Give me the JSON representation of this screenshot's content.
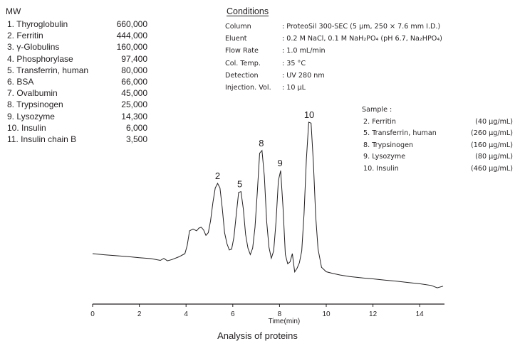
{
  "mw_panel": {
    "title": "MW",
    "rows": [
      {
        "name": "1. Thyroglobulin",
        "value": "660,000"
      },
      {
        "name": "2. Ferritin",
        "value": "444,000"
      },
      {
        "name": "3. γ-Globulins",
        "value": "160,000"
      },
      {
        "name": "4. Phosphorylase",
        "value": "97,400"
      },
      {
        "name": "5. Transferrin, human",
        "value": "80,000"
      },
      {
        "name": "6. BSA",
        "value": "66,000"
      },
      {
        "name": "7. Ovalbumin",
        "value": "45,000"
      },
      {
        "name": "8. Trypsinogen",
        "value": "25,000"
      },
      {
        "name": "9. Lysozyme",
        "value": "14,300"
      },
      {
        "name": "10. Insulin",
        "value": "6,000"
      },
      {
        "name": "11. Insulin chain B",
        "value": "3,500"
      }
    ]
  },
  "conditions": {
    "title": "Conditions",
    "rows": [
      {
        "key": "Column",
        "value": ": ProteoSil 300-SEC (5 µm, 250 × 7.6 mm I.D.)"
      },
      {
        "key": "Eluent",
        "value": ": 0.2 M NaCl, 0.1 M NaH₂PO₄ (pH 6.7, Na₂HPO₄)"
      },
      {
        "key": "Flow Rate",
        "value": ": 1.0 mL/min"
      },
      {
        "key": "Col. Temp.",
        "value": ": 35 °C"
      },
      {
        "key": "Detection",
        "value": ": UV 280 nm"
      },
      {
        "key": "Injection. Vol.",
        "value": ": 10 µL"
      }
    ]
  },
  "sample": {
    "title": "Sample :",
    "rows": [
      {
        "name": "2. Ferritin",
        "conc": "(40 µg/mL)"
      },
      {
        "name": "5. Transferrin, human",
        "conc": "(260 µg/mL)"
      },
      {
        "name": "8. Trypsinogen",
        "conc": "(160 µg/mL)"
      },
      {
        "name": "9. Lysozyme",
        "conc": "(80 µg/mL)"
      },
      {
        "name": "10. Insulin",
        "conc": "(460 µg/mL)"
      }
    ]
  },
  "caption": "Analysis of proteins",
  "chart_data": {
    "type": "line",
    "xlabel": "Time(min)",
    "ylabel": "",
    "xlim": [
      0,
      15
    ],
    "ylim": [
      0,
      100
    ],
    "x_ticks": [
      0,
      2,
      4,
      6,
      8,
      10,
      12,
      14
    ],
    "grid": false,
    "series": [
      {
        "x": [
          0,
          0.5,
          1.0,
          1.5,
          2.0,
          2.5,
          2.9,
          3.05,
          3.2,
          3.4,
          3.7,
          3.95,
          4.05,
          4.15,
          4.3,
          4.45,
          4.55,
          4.65,
          4.75,
          4.85,
          4.95,
          5.05,
          5.15,
          5.25,
          5.35,
          5.45,
          5.55,
          5.65,
          5.75,
          5.85,
          5.95,
          6.05,
          6.15,
          6.25,
          6.35,
          6.45,
          6.55,
          6.65,
          6.75,
          6.85,
          6.95,
          7.05,
          7.15,
          7.25,
          7.35,
          7.45,
          7.55,
          7.65,
          7.75,
          7.85,
          7.95,
          8.05,
          8.15,
          8.25,
          8.35,
          8.45,
          8.55,
          8.65,
          8.75,
          8.85,
          8.95,
          9.05,
          9.15,
          9.25,
          9.35,
          9.45,
          9.55,
          9.65,
          9.8,
          10.0,
          10.3,
          10.6,
          11.0,
          11.5,
          12.0,
          12.5,
          13.0,
          13.5,
          14.0,
          14.5,
          14.75,
          15.0
        ],
        "y": [
          24.5,
          23.9,
          23.4,
          22.9,
          22.3,
          21.8,
          20.8,
          21.9,
          20.6,
          21.3,
          22.8,
          24.5,
          29.0,
          37.0,
          38.0,
          37.0,
          38.5,
          39.0,
          37.5,
          34.5,
          36.0,
          42.5,
          52.5,
          60.5,
          63.0,
          60.5,
          49.5,
          36.0,
          30.0,
          26.5,
          27.0,
          33.5,
          46.0,
          58.0,
          58.5,
          49.0,
          35.0,
          27.5,
          24.0,
          27.5,
          39.0,
          58.0,
          79.5,
          81.0,
          67.0,
          42.0,
          28.0,
          22.0,
          26.0,
          42.0,
          64.5,
          70.0,
          50.0,
          24.0,
          19.0,
          20.0,
          24.5,
          14.5,
          16.5,
          19.5,
          26.0,
          46.0,
          76.0,
          96.5,
          96.0,
          74.0,
          45.0,
          27.0,
          17.0,
          14.6,
          13.6,
          12.8,
          12.0,
          11.3,
          10.7,
          10.0,
          9.4,
          8.7,
          8.0,
          7.1,
          5.8,
          6.7
        ]
      }
    ],
    "peak_labels": [
      {
        "label": "2",
        "x": 5.35,
        "y": 63.0
      },
      {
        "label": "5",
        "x": 6.3,
        "y": 58.5
      },
      {
        "label": "8",
        "x": 7.22,
        "y": 81.0
      },
      {
        "label": "9",
        "x": 8.02,
        "y": 70.0
      },
      {
        "label": "10",
        "x": 9.27,
        "y": 96.5
      }
    ]
  }
}
